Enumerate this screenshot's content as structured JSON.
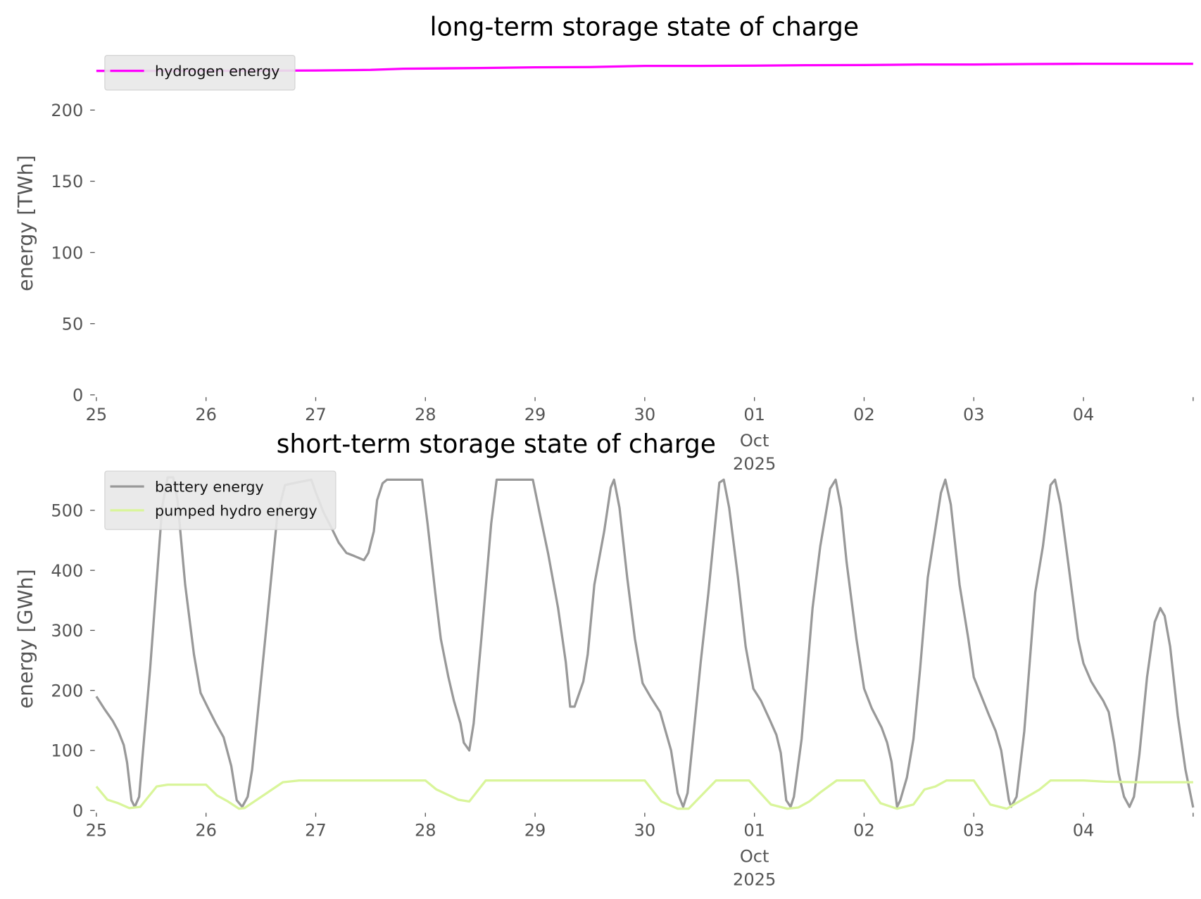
{
  "chart_data": [
    {
      "type": "line",
      "title": "long-term storage state of charge",
      "ylabel": "energy [TWh]",
      "xlabel": "",
      "x_unit": "days since 2025-09-25",
      "xlim": [
        0,
        10
      ],
      "ylim": [
        0,
        230
      ],
      "yticks": [
        0,
        50,
        100,
        150,
        200
      ],
      "xtick_labels": [
        "25",
        "26",
        "27",
        "28",
        "29",
        "30",
        "01",
        "02",
        "03",
        "04"
      ],
      "xtick_sublabel": [
        "Oct",
        "2025"
      ],
      "legend_position": "top-left",
      "grid": false,
      "series": [
        {
          "name": "hydrogen energy",
          "color": "#ff00ff",
          "x": [
            0,
            1,
            2,
            2.5,
            2.8,
            3.5,
            4,
            4.5,
            5,
            5.5,
            6,
            6.5,
            7,
            7.5,
            8,
            8.5,
            9,
            10
          ],
          "y": [
            227.5,
            227.5,
            227.8,
            228.2,
            229,
            229.5,
            230,
            230.2,
            231,
            231,
            231.2,
            231.5,
            231.6,
            232,
            232,
            232.3,
            232.5,
            232.5
          ]
        }
      ]
    },
    {
      "type": "line",
      "title": "short-term storage state of charge",
      "ylabel": "energy [GWh]",
      "xlabel": "",
      "x_unit": "days since 2025-09-25",
      "xlim": [
        0,
        10
      ],
      "ylim": [
        0,
        570
      ],
      "yticks": [
        0,
        100,
        200,
        300,
        400,
        500
      ],
      "xtick_labels": [
        "25",
        "26",
        "27",
        "28",
        "29",
        "30",
        "01",
        "02",
        "03",
        "04"
      ],
      "xtick_sublabel": [
        "Oct",
        "2025"
      ],
      "legend_position": "top-left",
      "grid": false,
      "series": [
        {
          "name": "battery energy",
          "color": "#999999",
          "x": [
            0,
            0.07,
            0.15,
            0.2,
            0.25,
            0.28,
            0.32,
            0.35,
            0.39,
            0.42,
            0.49,
            0.6,
            0.65,
            0.7,
            0.74,
            0.81,
            0.89,
            0.95,
            1.02,
            1.09,
            1.16,
            1.23,
            1.28,
            1.33,
            1.38,
            1.42,
            1.54,
            1.65,
            1.72,
            1.82,
            1.96,
            2.0,
            2.07,
            2.14,
            2.21,
            2.28,
            2.35,
            2.44,
            2.48,
            2.53,
            2.56,
            2.61,
            2.65,
            2.97,
            3.02,
            3.09,
            3.14,
            3.21,
            3.26,
            3.32,
            3.35,
            3.4,
            3.44,
            3.51,
            3.6,
            3.65,
            3.98,
            4.04,
            4.12,
            4.21,
            4.28,
            4.32,
            4.36,
            4.44,
            4.48,
            4.54,
            4.63,
            4.69,
            4.72,
            4.77,
            4.84,
            4.91,
            4.98,
            5.05,
            5.14,
            5.19,
            5.24,
            5.3,
            5.35,
            5.39,
            5.44,
            5.51,
            5.58,
            5.65,
            5.68,
            5.72,
            5.77,
            5.85,
            5.92,
            5.99,
            6.06,
            6.14,
            6.2,
            6.24,
            6.29,
            6.33,
            6.36,
            6.43,
            6.53,
            6.6,
            6.69,
            6.74,
            6.79,
            6.84,
            6.93,
            7.0,
            7.07,
            7.16,
            7.21,
            7.25,
            7.3,
            7.33,
            7.39,
            7.45,
            7.51,
            7.58,
            7.63,
            7.7,
            7.74,
            7.79,
            7.87,
            7.95,
            8.0,
            8.07,
            8.14,
            8.2,
            8.25,
            8.32,
            8.34,
            8.39,
            8.46,
            8.56,
            8.63,
            8.7,
            8.74,
            8.79,
            8.86,
            8.95,
            9.0,
            9.07,
            9.12,
            9.18,
            9.23,
            9.28,
            9.32,
            9.37,
            9.42,
            9.46,
            9.51,
            9.58,
            9.65,
            9.7,
            9.74,
            9.79,
            9.86,
            9.93,
            10.0
          ],
          "y": [
            190,
            170,
            149,
            132,
            109,
            80,
            17,
            6,
            23,
            87,
            235,
            505,
            555,
            555,
            517,
            376,
            260,
            196,
            170,
            145,
            122,
            74,
            17,
            6,
            23,
            68,
            286,
            491,
            542,
            546,
            551,
            530,
            497,
            472,
            446,
            429,
            424,
            417,
            429,
            465,
            517,
            545,
            551,
            551,
            478,
            363,
            286,
            222,
            183,
            145,
            113,
            100,
            145,
            286,
            478,
            551,
            551,
            497,
            427,
            337,
            247,
            173,
            173,
            215,
            260,
            376,
            465,
            538,
            551,
            504,
            388,
            286,
            212,
            190,
            164,
            132,
            100,
            29,
            6,
            29,
            119,
            247,
            363,
            491,
            546,
            551,
            504,
            388,
            273,
            203,
            183,
            151,
            126,
            96,
            17,
            6,
            23,
            119,
            337,
            440,
            536,
            551,
            504,
            414,
            286,
            203,
            170,
            138,
            113,
            81,
            6,
            17,
            55,
            119,
            235,
            388,
            446,
            529,
            551,
            510,
            376,
            286,
            222,
            190,
            158,
            132,
            100,
            17,
            6,
            23,
            132,
            363,
            440,
            542,
            551,
            510,
            414,
            286,
            245,
            215,
            200,
            183,
            164,
            113,
            62,
            23,
            6,
            23,
            94,
            222,
            314,
            337,
            324,
            273,
            158,
            68,
            5
          ]
        },
        {
          "name": "pumped hydro energy",
          "color": "#d9f59a",
          "x": [
            0,
            0.1,
            0.2,
            0.3,
            0.4,
            0.55,
            0.65,
            1.0,
            1.1,
            1.2,
            1.3,
            1.35,
            1.7,
            1.85,
            3.0,
            3.1,
            3.3,
            3.4,
            3.55,
            5.0,
            5.15,
            5.3,
            5.4,
            5.65,
            5.95,
            6.15,
            6.3,
            6.4,
            6.5,
            6.6,
            6.75,
            7.0,
            7.15,
            7.3,
            7.45,
            7.55,
            7.65,
            7.75,
            8.0,
            8.15,
            8.3,
            8.6,
            8.7,
            9.0,
            9.2,
            9.5,
            10.0
          ],
          "y": [
            40,
            18,
            12,
            4,
            6,
            40,
            43,
            43,
            25,
            15,
            3,
            4,
            47,
            50,
            50,
            35,
            18,
            15,
            50,
            50,
            15,
            3,
            3,
            50,
            50,
            10,
            3,
            5,
            15,
            30,
            50,
            50,
            12,
            3,
            10,
            35,
            40,
            50,
            50,
            10,
            3,
            35,
            50,
            50,
            48,
            47,
            47
          ]
        }
      ]
    }
  ]
}
